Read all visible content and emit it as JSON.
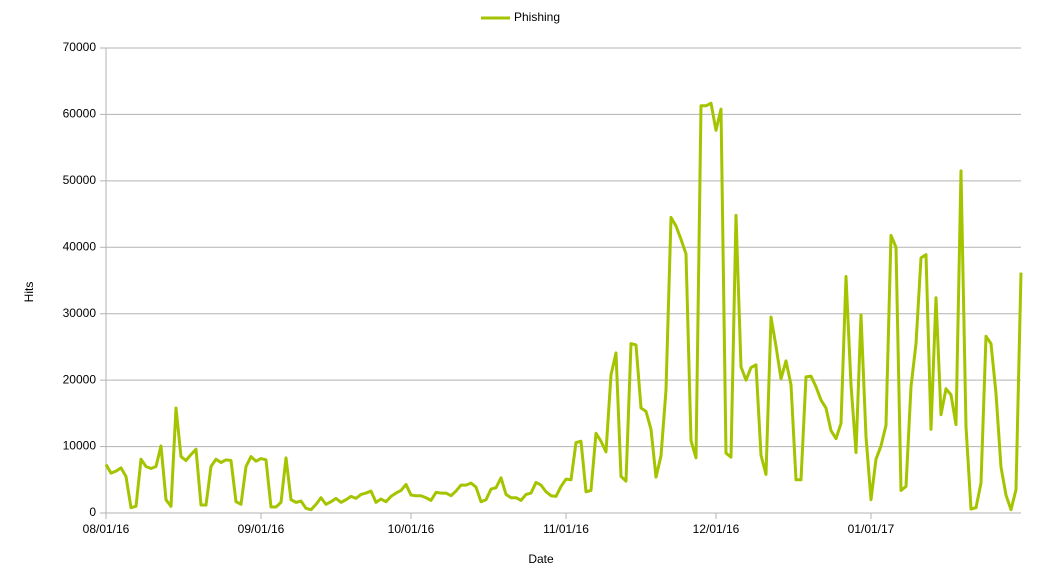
{
  "chart_data": {
    "type": "line",
    "x_label": "Date",
    "y_label": "Hits",
    "x": [
      "08/01/16",
      "08/02/16",
      "08/03/16",
      "08/04/16",
      "08/05/16",
      "08/06/16",
      "08/07/16",
      "08/08/16",
      "08/09/16",
      "08/10/16",
      "08/11/16",
      "08/12/16",
      "08/13/16",
      "08/14/16",
      "08/15/16",
      "08/16/16",
      "08/17/16",
      "08/18/16",
      "08/19/16",
      "08/20/16",
      "08/21/16",
      "08/22/16",
      "08/23/16",
      "08/24/16",
      "08/25/16",
      "08/26/16",
      "08/27/16",
      "08/28/16",
      "08/29/16",
      "08/30/16",
      "08/31/16",
      "09/01/16",
      "09/02/16",
      "09/03/16",
      "09/04/16",
      "09/05/16",
      "09/06/16",
      "09/07/16",
      "09/08/16",
      "09/09/16",
      "09/10/16",
      "09/11/16",
      "09/12/16",
      "09/13/16",
      "09/14/16",
      "09/15/16",
      "09/16/16",
      "09/17/16",
      "09/18/16",
      "09/19/16",
      "09/20/16",
      "09/21/16",
      "09/22/16",
      "09/23/16",
      "09/24/16",
      "09/25/16",
      "09/26/16",
      "09/27/16",
      "09/28/16",
      "09/29/16",
      "09/30/16",
      "10/01/16",
      "10/02/16",
      "10/03/16",
      "10/04/16",
      "10/05/16",
      "10/06/16",
      "10/07/16",
      "10/08/16",
      "10/09/16",
      "10/10/16",
      "10/11/16",
      "10/12/16",
      "10/13/16",
      "10/14/16",
      "10/15/16",
      "10/16/16",
      "10/17/16",
      "10/18/16",
      "10/19/16",
      "10/20/16",
      "10/21/16",
      "10/22/16",
      "10/23/16",
      "10/24/16",
      "10/25/16",
      "10/26/16",
      "10/27/16",
      "10/28/16",
      "10/29/16",
      "10/30/16",
      "10/31/16",
      "11/01/16",
      "11/02/16",
      "11/03/16",
      "11/04/16",
      "11/05/16",
      "11/06/16",
      "11/07/16",
      "11/08/16",
      "11/09/16",
      "11/10/16",
      "11/11/16",
      "11/12/16",
      "11/13/16",
      "11/14/16",
      "11/15/16",
      "11/16/16",
      "11/17/16",
      "11/18/16",
      "11/19/16",
      "11/20/16",
      "11/21/16",
      "11/22/16",
      "11/23/16",
      "11/24/16",
      "11/25/16",
      "11/26/16",
      "11/27/16",
      "11/28/16",
      "11/29/16",
      "11/30/16",
      "12/01/16",
      "12/02/16",
      "12/03/16",
      "12/04/16",
      "12/05/16",
      "12/06/16",
      "12/07/16",
      "12/08/16",
      "12/09/16",
      "12/10/16",
      "12/11/16",
      "12/12/16",
      "12/13/16",
      "12/14/16",
      "12/15/16",
      "12/16/16",
      "12/17/16",
      "12/18/16",
      "12/19/16",
      "12/20/16",
      "12/21/16",
      "12/22/16",
      "12/23/16",
      "12/24/16",
      "12/25/16",
      "12/26/16",
      "12/27/16",
      "12/28/16",
      "12/29/16",
      "12/30/16",
      "12/31/16",
      "01/01/17",
      "01/02/17",
      "01/03/17",
      "01/04/17",
      "01/05/17",
      "01/06/17",
      "01/07/17",
      "01/08/17",
      "01/09/17",
      "01/10/17",
      "01/11/17",
      "01/12/17",
      "01/13/17",
      "01/14/17",
      "01/15/17",
      "01/16/17",
      "01/17/17",
      "01/18/17",
      "01/19/17",
      "01/20/17",
      "01/21/17",
      "01/22/17",
      "01/23/17",
      "01/24/17",
      "01/25/17",
      "01/26/17",
      "01/27/17",
      "01/28/17",
      "01/29/17",
      "01/30/17",
      "01/31/17"
    ],
    "xticks": [
      "08/01/16",
      "09/01/16",
      "10/01/16",
      "11/01/16",
      "12/01/16",
      "01/01/17"
    ],
    "series": [
      {
        "name": "Phishing",
        "color": "#a5c400",
        "values": [
          7300,
          6000,
          6300,
          6800,
          5500,
          800,
          1000,
          8100,
          7000,
          6700,
          7000,
          10100,
          2000,
          1000,
          15800,
          8500,
          7900,
          8800,
          9600,
          1200,
          1200,
          7000,
          8100,
          7600,
          8000,
          7900,
          1700,
          1300,
          7000,
          8500,
          7800,
          8200,
          8000,
          900,
          900,
          1600,
          8300,
          2000,
          1600,
          1800,
          700,
          500,
          1300,
          2300,
          1300,
          1700,
          2200,
          1600,
          2000,
          2500,
          2200,
          2800,
          3000,
          3300,
          1600,
          2100,
          1700,
          2500,
          3000,
          3400,
          4300,
          2700,
          2600,
          2600,
          2300,
          1900,
          3100,
          3000,
          3000,
          2600,
          3300,
          4200,
          4200,
          4500,
          3900,
          1700,
          2000,
          3600,
          3800,
          5300,
          2800,
          2300,
          2300,
          1900,
          2800,
          3000,
          4600,
          4200,
          3200,
          2600,
          2500,
          4000,
          5100,
          5000,
          10600,
          10800,
          3200,
          3400,
          12000,
          10800,
          9200,
          20800,
          24100,
          5500,
          4800,
          25500,
          25300,
          15800,
          15300,
          12600,
          5400,
          8600,
          18500,
          44500,
          43200,
          41200,
          39000,
          10900,
          8300,
          61300,
          61300,
          61700,
          57600,
          60800,
          9000,
          8400,
          44800,
          22000,
          20000,
          21900,
          22300,
          8700,
          5800,
          29500,
          25100,
          20200,
          22900,
          19300,
          5000,
          5000,
          20500,
          20600,
          19000,
          17000,
          15800,
          12400,
          11200,
          13500,
          35600,
          19300,
          9100,
          29800,
          11500,
          2000,
          8100,
          10100,
          13200,
          41800,
          40000,
          3400,
          4000,
          19000,
          25500,
          38400,
          38900,
          12600,
          32400,
          14800,
          18700,
          17800,
          13300,
          51500,
          13000,
          600,
          800,
          4500,
          26600,
          25500,
          18000,
          6900,
          2700,
          500,
          3500,
          36200
        ]
      }
    ],
    "ylim": [
      0,
      70000
    ],
    "yticks": [
      0,
      10000,
      20000,
      30000,
      40000,
      50000,
      60000,
      70000
    ],
    "grid": true,
    "legend": "top"
  }
}
